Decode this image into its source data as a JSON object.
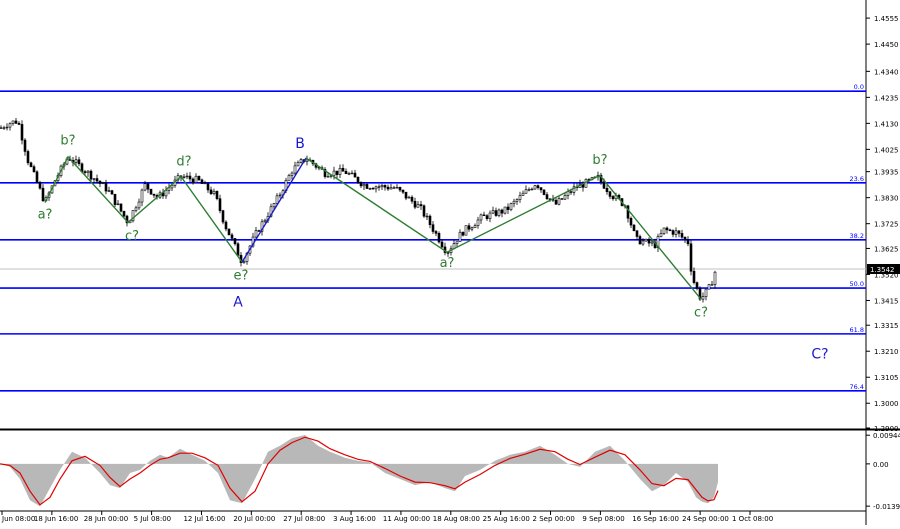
{
  "chart_data": [
    {
      "type": "candlestick",
      "title": "",
      "colors": {
        "candles": "#000000",
        "fib_lines": "#0000ff",
        "wave_lines": "#2e7d32",
        "wave_B": "#1a1acc",
        "price_line": "#c0c0c0"
      },
      "ylim": [
        1.29,
        1.462
      ],
      "y_ticks": [
        "1.4555",
        "1.4450",
        "1.4340",
        "1.4235",
        "1.4130",
        "1.4025",
        "1.3935",
        "1.3830",
        "1.3725",
        "1.3625",
        "1.3520",
        "1.3415",
        "1.3315",
        "1.3210",
        "1.3105",
        "1.3000",
        "1.2900"
      ],
      "current_price": "1.3542",
      "x_ticks": [
        "Jun 08:00",
        "18 Jun 16:00",
        "28 Jun 00:00",
        "5 Jul 08:00",
        "12 Jul 16:00",
        "20 Jul 00:00",
        "27 Jul 08:00",
        "3 Aug 16:00",
        "11 Aug 00:00",
        "18 Aug 08:00",
        "25 Aug 16:00",
        "2 Sep 00:00",
        "9 Sep 08:00",
        "16 Sep 16:00",
        "24 Sep 00:00",
        "1 Oct 08:00"
      ],
      "price_path": [
        [
          0,
          1.411
        ],
        [
          8,
          1.413
        ],
        [
          18,
          1.414
        ],
        [
          28,
          1.398
        ],
        [
          45,
          1.381
        ],
        [
          55,
          1.39
        ],
        [
          68,
          1.3995
        ],
        [
          88,
          1.393
        ],
        [
          108,
          1.386
        ],
        [
          128,
          1.373
        ],
        [
          145,
          1.388
        ],
        [
          158,
          1.383
        ],
        [
          181,
          1.3915
        ],
        [
          198,
          1.39
        ],
        [
          215,
          1.384
        ],
        [
          225,
          1.372
        ],
        [
          242,
          1.357
        ],
        [
          258,
          1.37
        ],
        [
          278,
          1.383
        ],
        [
          292,
          1.394
        ],
        [
          306,
          1.399
        ],
        [
          325,
          1.393
        ],
        [
          345,
          1.3935
        ],
        [
          365,
          1.388
        ],
        [
          395,
          1.387
        ],
        [
          420,
          1.379
        ],
        [
          447,
          1.361
        ],
        [
          462,
          1.369
        ],
        [
          482,
          1.375
        ],
        [
          506,
          1.378
        ],
        [
          536,
          1.389
        ],
        [
          555,
          1.38
        ],
        [
          575,
          1.387
        ],
        [
          598,
          1.391
        ],
        [
          612,
          1.384
        ],
        [
          625,
          1.38
        ],
        [
          636,
          1.366
        ],
        [
          655,
          1.364
        ],
        [
          664,
          1.37
        ],
        [
          676,
          1.369
        ],
        [
          688,
          1.365
        ],
        [
          692,
          1.351
        ],
        [
          701,
          1.342
        ],
        [
          710,
          1.347
        ],
        [
          716,
          1.3542
        ]
      ],
      "horizontal_levels": [
        {
          "label": "0.0",
          "value": 1.426
        },
        {
          "label": "23.6",
          "value": 1.389
        },
        {
          "label": "38.2",
          "value": 1.366
        },
        {
          "label": "50.0",
          "value": 1.3465
        },
        {
          "label": "61.8",
          "value": 1.328
        },
        {
          "label": "76.4",
          "value": 1.305
        }
      ],
      "wave_lines": [
        {
          "name": "",
          "color": "#2e7d32",
          "points": [
            [
              45,
              1.381
            ],
            [
              68,
              1.3995
            ],
            [
              128,
              1.373
            ],
            [
              181,
              1.3915
            ],
            [
              242,
              1.357
            ]
          ]
        },
        {
          "name": "",
          "color": "#1a1acc",
          "points": [
            [
              242,
              1.357
            ],
            [
              306,
              1.399
            ]
          ]
        },
        {
          "name": "",
          "color": "#2e7d32",
          "points": [
            [
              306,
              1.399
            ],
            [
              447,
              1.361
            ],
            [
              575,
              1.387
            ],
            [
              600,
              1.392
            ],
            [
              701,
              1.342
            ]
          ]
        }
      ],
      "annotations": [
        {
          "text": "a?",
          "x": 45,
          "y": 1.3745,
          "color": "#2e7d32"
        },
        {
          "text": "b?",
          "x": 68,
          "y": 1.4045,
          "color": "#2e7d32"
        },
        {
          "text": "c?",
          "x": 132,
          "y": 1.366,
          "color": "#2e7d32"
        },
        {
          "text": "d?",
          "x": 184,
          "y": 1.396,
          "color": "#2e7d32"
        },
        {
          "text": "e?",
          "x": 241,
          "y": 1.35,
          "color": "#2e7d32"
        },
        {
          "text": "A",
          "x": 238,
          "y": 1.339,
          "color": "#1a1acc"
        },
        {
          "text": "B",
          "x": 300,
          "y": 1.403,
          "color": "#1a1acc"
        },
        {
          "text": "a?",
          "x": 447,
          "y": 1.355,
          "color": "#2e7d32"
        },
        {
          "text": "b?",
          "x": 600,
          "y": 1.3965,
          "color": "#2e7d32"
        },
        {
          "text": "c?",
          "x": 701,
          "y": 1.335,
          "color": "#2e7d32"
        },
        {
          "text": "C?",
          "x": 820,
          "y": 1.318,
          "color": "#1a1acc"
        }
      ]
    },
    {
      "type": "area",
      "title": "",
      "colors": {
        "fill": "#b8b8b8",
        "signal": "#e00000"
      },
      "ylim": [
        -0.0152,
        0.0105
      ],
      "y_ticks": [
        "0.00944",
        "0.00",
        "-0.01393"
      ],
      "x": [
        0,
        10,
        20,
        30,
        40,
        50,
        60,
        72,
        85,
        100,
        110,
        120,
        130,
        140,
        150,
        160,
        168,
        180,
        192,
        205,
        218,
        230,
        242,
        255,
        268,
        280,
        292,
        305,
        318,
        330,
        345,
        358,
        370,
        385,
        400,
        415,
        430,
        445,
        455,
        465,
        480,
        495,
        510,
        525,
        540,
        555,
        568,
        580,
        595,
        610,
        625,
        640,
        652,
        664,
        676,
        688,
        696,
        702,
        708,
        714,
        718
      ],
      "values": [
        0.0,
        -0.001,
        -0.005,
        -0.012,
        -0.014,
        -0.008,
        -0.002,
        0.004,
        0.002,
        -0.003,
        -0.007,
        -0.008,
        -0.003,
        -0.002,
        0.001,
        0.003,
        0.002,
        0.005,
        0.003,
        0.001,
        -0.003,
        -0.012,
        -0.013,
        -0.005,
        0.004,
        0.006,
        0.0085,
        0.0095,
        0.006,
        0.004,
        0.002,
        0.001,
        0.0005,
        -0.003,
        -0.005,
        -0.007,
        -0.006,
        -0.008,
        -0.009,
        -0.004,
        -0.002,
        0.001,
        0.003,
        0.004,
        0.006,
        0.003,
        0.0,
        -0.001,
        0.004,
        0.006,
        0.001,
        -0.005,
        -0.009,
        -0.007,
        -0.003,
        -0.006,
        -0.011,
        -0.0125,
        -0.013,
        -0.011,
        -0.006
      ],
      "signal": [
        0.0,
        -0.0005,
        -0.003,
        -0.009,
        -0.0135,
        -0.011,
        -0.005,
        0.001,
        0.0025,
        -0.0005,
        -0.0045,
        -0.0075,
        -0.005,
        -0.003,
        -0.0005,
        0.0015,
        0.002,
        0.0035,
        0.0035,
        0.002,
        -0.0005,
        -0.008,
        -0.0125,
        -0.009,
        0.0,
        0.0045,
        0.007,
        0.0088,
        0.0075,
        0.005,
        0.003,
        0.0015,
        0.0008,
        -0.0015,
        -0.004,
        -0.006,
        -0.0062,
        -0.0072,
        -0.0082,
        -0.006,
        -0.0035,
        -0.0005,
        0.0018,
        0.0032,
        0.0048,
        0.004,
        0.0015,
        -0.0002,
        0.0022,
        0.0045,
        0.003,
        -0.002,
        -0.0065,
        -0.0072,
        -0.0048,
        -0.0052,
        -0.0085,
        -0.011,
        -0.0122,
        -0.0118,
        -0.0088
      ]
    }
  ]
}
